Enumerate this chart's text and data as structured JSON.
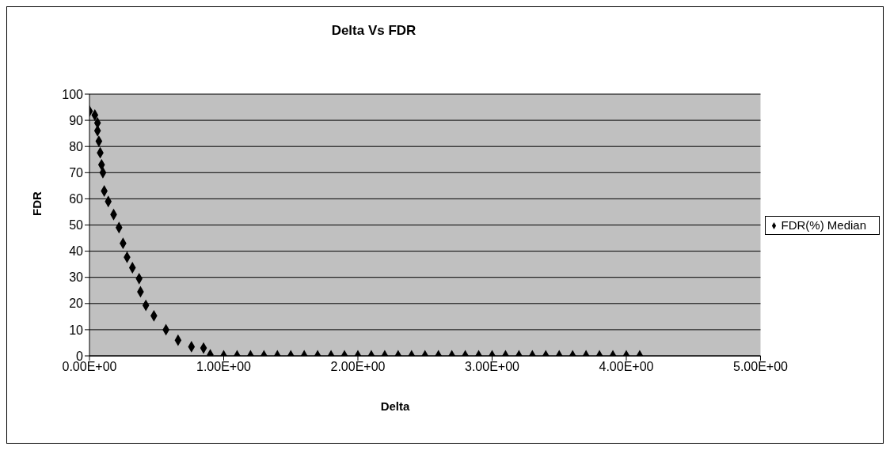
{
  "chart_data": {
    "type": "scatter",
    "title": "Delta Vs FDR",
    "xlabel": "Delta",
    "ylabel": "FDR",
    "x": [
      0,
      0.04,
      0.06,
      0.06,
      0.07,
      0.08,
      0.09,
      0.1,
      0.11,
      0.14,
      0.18,
      0.22,
      0.25,
      0.28,
      0.32,
      0.37,
      0.38,
      0.42,
      0.48,
      0.57,
      0.66,
      0.76,
      0.85,
      0.9,
      1.0,
      1.1,
      1.2,
      1.3,
      1.4,
      1.5,
      1.6,
      1.7,
      1.8,
      1.9,
      2.0,
      2.1,
      2.2,
      2.3,
      2.4,
      2.5,
      2.6,
      2.7,
      2.8,
      2.9,
      3.0,
      3.1,
      3.2,
      3.3,
      3.4,
      3.5,
      3.6,
      3.7,
      3.8,
      3.9,
      4.0,
      4.1
    ],
    "series": [
      {
        "name": "FDR(%) Median",
        "color": "#000000",
        "values": [
          93.5,
          92,
          89,
          86,
          82,
          77.6,
          73,
          70,
          63,
          59,
          54,
          49,
          43,
          37.7,
          33.7,
          29.5,
          24.5,
          19.3,
          15.3,
          10,
          6,
          3.5,
          3,
          0.4,
          0,
          0,
          0,
          0,
          0,
          0,
          0,
          0,
          0,
          0,
          0,
          0,
          0,
          0,
          0,
          0,
          0,
          0,
          0,
          0,
          0,
          0,
          0,
          0,
          0,
          0,
          0,
          0,
          0,
          0,
          0,
          0
        ]
      }
    ],
    "xlim": [
      0,
      5
    ],
    "xticks": [
      {
        "value": 0,
        "label": "0.00E+00"
      },
      {
        "value": 1,
        "label": "1.00E+00"
      },
      {
        "value": 2,
        "label": "2.00E+00"
      },
      {
        "value": 3,
        "label": "3.00E+00"
      },
      {
        "value": 4,
        "label": "4.00E+00"
      },
      {
        "value": 5,
        "label": "5.00E+00"
      }
    ],
    "ylim": [
      0,
      100
    ],
    "yticks": [
      0,
      10,
      20,
      30,
      40,
      50,
      60,
      70,
      80,
      90,
      100
    ],
    "grid": "y",
    "legend": "right",
    "marker": "diamond"
  }
}
